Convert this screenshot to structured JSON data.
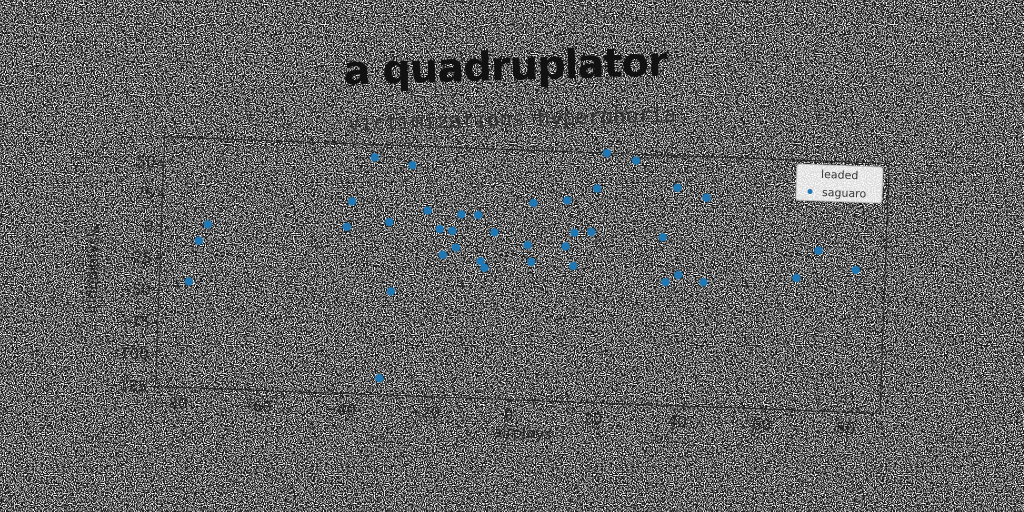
{
  "chart_data": {
    "type": "scatter",
    "title": "a quadruplator",
    "subtitle": "victimizations hyperphoria",
    "xlabel": "airplays",
    "ylabel": "iridodialysis",
    "xlim": [
      -84,
      88
    ],
    "ylim": [
      -125,
      70
    ],
    "xticks": [
      "−80",
      "−60",
      "−40",
      "−20",
      "0",
      "20",
      "40",
      "60",
      "80"
    ],
    "yticks": [
      "50",
      "25",
      "0",
      "−25",
      "−50",
      "−75",
      "−100",
      "−125"
    ],
    "grid": false,
    "legend": {
      "title": "leaded",
      "placement": "top-right"
    },
    "series": [
      {
        "name": "saguaro",
        "color": "#1f77b4",
        "points": [
          [
            -77,
            -42
          ],
          [
            -75,
            -10
          ],
          [
            -73,
            3
          ],
          [
            -40,
            5
          ],
          [
            -39,
            25
          ],
          [
            -34,
            60
          ],
          [
            -30,
            10
          ],
          [
            -29,
            -44
          ],
          [
            -31,
            -112
          ],
          [
            -25,
            55
          ],
          [
            -21,
            20
          ],
          [
            -18,
            6
          ],
          [
            -17,
            -14
          ],
          [
            -15,
            5
          ],
          [
            -14,
            -8
          ],
          [
            -13,
            18
          ],
          [
            -9,
            18
          ],
          [
            -8,
            -18
          ],
          [
            -7,
            -23
          ],
          [
            -5,
            5
          ],
          [
            3,
            -4
          ],
          [
            4,
            29
          ],
          [
            4,
            -17
          ],
          [
            12,
            -4
          ],
          [
            12,
            32
          ],
          [
            14,
            7
          ],
          [
            14,
            -19
          ],
          [
            18,
            8
          ],
          [
            19,
            42
          ],
          [
            21,
            70
          ],
          [
            28,
            65
          ],
          [
            35,
            6
          ],
          [
            36,
            -29
          ],
          [
            38,
            45
          ],
          [
            39,
            -23
          ],
          [
            45,
            38
          ],
          [
            45,
            -28
          ],
          [
            67,
            -22
          ],
          [
            72,
            0
          ],
          [
            81,
            -14
          ]
        ]
      }
    ]
  }
}
